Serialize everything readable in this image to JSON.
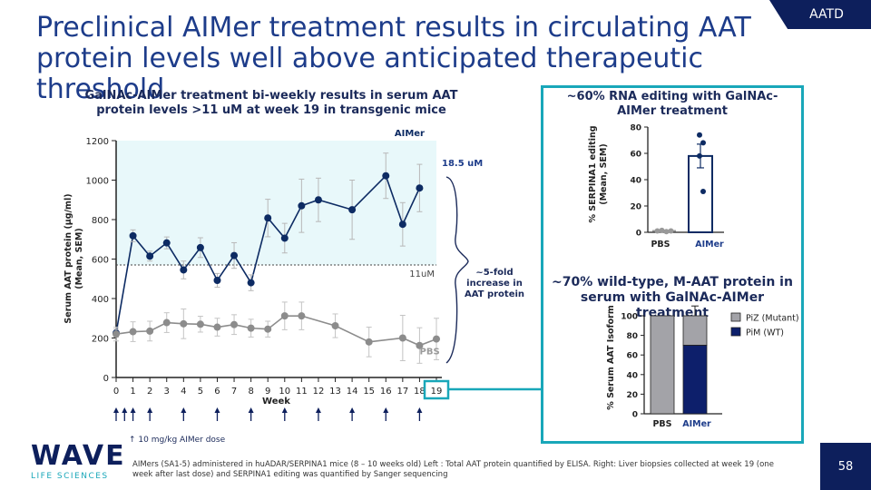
{
  "header": {
    "title": "Preclinical AIMer treatment results in circulating AAT protein levels well above anticipated therapeutic threshold",
    "tag": "AATD",
    "page_number": "58"
  },
  "left_chart_title": "GalNAc-AIMer treatment bi-weekly results in serum AAT protein levels >11 uM at week 19 in transgenic mice",
  "right_top_title": "~60% RNA editing with GalNAc-AIMer treatment",
  "right_bottom_title": "~70% wild-type, M-AAT protein in serum with GalNAc-AIMer treatment",
  "dose_legend": "10 mg/kg AIMer dose",
  "footnote": "AIMers (SA1-5) administered in huADAR/SERPINA1 mice (8 – 10 weeks old) Left : Total AAT protein quantified by ELISA. Right: Liver biopsies collected at week 19 (one week after last dose) and SERPINA1 editing was quantified by Sanger sequencing",
  "logo": {
    "name": "WAVE",
    "sub": "LIFE SCIENCES"
  },
  "colors": {
    "navy": "#0d2b63",
    "grey": "#8c8c8c",
    "teal": "#19a7b9",
    "title_blue": "#1d3c8a"
  },
  "chart_data": [
    {
      "type": "line",
      "xlabel": "Week",
      "ylabel": "Serum AAT protein (µg/ml) (Mean, SEM)",
      "ylim": [
        0,
        1200
      ],
      "yticks": [
        0,
        200,
        400,
        600,
        800,
        1000,
        1200
      ],
      "x": [
        0,
        1,
        2,
        3,
        4,
        5,
        6,
        7,
        8,
        9,
        10,
        11,
        12,
        13,
        14,
        15,
        16,
        17,
        18,
        19
      ],
      "xtick_labels": [
        "0",
        "1",
        "2",
        "3",
        "4",
        "5",
        "6",
        "7",
        "8",
        "9",
        "10",
        "11",
        "12",
        "13",
        "14",
        "15",
        "16",
        "17",
        "18",
        "19"
      ],
      "series": [
        {
          "name": "AIMer",
          "color": "#0d2b63",
          "points": [
            {
              "x": 0,
              "y": 225,
              "err": 20
            },
            {
              "x": 1,
              "y": 718,
              "err": 30
            },
            {
              "x": 2,
              "y": 615,
              "err": 25
            },
            {
              "x": 3,
              "y": 682,
              "err": 30
            },
            {
              "x": 4,
              "y": 545,
              "err": 45
            },
            {
              "x": 5,
              "y": 658,
              "err": 50
            },
            {
              "x": 6,
              "y": 492,
              "err": 35
            },
            {
              "x": 7,
              "y": 618,
              "err": 65
            },
            {
              "x": 8,
              "y": 480,
              "err": 40
            },
            {
              "x": 9,
              "y": 808,
              "err": 95
            },
            {
              "x": 10,
              "y": 706,
              "err": 75
            },
            {
              "x": 11,
              "y": 870,
              "err": 135
            },
            {
              "x": 12,
              "y": 900,
              "err": 110
            },
            {
              "x": 14,
              "y": 850,
              "err": 150
            },
            {
              "x": 16,
              "y": 1022,
              "err": 115
            },
            {
              "x": 17,
              "y": 776,
              "err": 110
            },
            {
              "x": 18,
              "y": 960,
              "err": 120
            }
          ]
        },
        {
          "name": "PBS",
          "color": "#8c8c8c",
          "points": [
            {
              "x": 0,
              "y": 220,
              "err": 35
            },
            {
              "x": 1,
              "y": 232,
              "err": 50
            },
            {
              "x": 2,
              "y": 235,
              "err": 50
            },
            {
              "x": 3,
              "y": 278,
              "err": 50
            },
            {
              "x": 4,
              "y": 272,
              "err": 75
            },
            {
              "x": 5,
              "y": 270,
              "err": 40
            },
            {
              "x": 6,
              "y": 255,
              "err": 45
            },
            {
              "x": 7,
              "y": 268,
              "err": 50
            },
            {
              "x": 8,
              "y": 250,
              "err": 45
            },
            {
              "x": 9,
              "y": 245,
              "err": 40
            },
            {
              "x": 10,
              "y": 312,
              "err": 70
            },
            {
              "x": 11,
              "y": 312,
              "err": 70
            },
            {
              "x": 13,
              "y": 262,
              "err": 60
            },
            {
              "x": 15,
              "y": 180,
              "err": 75
            },
            {
              "x": 17,
              "y": 200,
              "err": 115
            },
            {
              "x": 18,
              "y": 162,
              "err": 90
            },
            {
              "x": 19,
              "y": 195,
              "err": 105
            }
          ]
        }
      ],
      "threshold": {
        "y": 570,
        "label": "11uM"
      },
      "annotations": {
        "top_value": "18.5 uM",
        "increase_label": "~5-fold increase in AAT protein"
      },
      "dose_weeks": [
        0,
        0.5,
        1,
        2,
        4,
        6,
        8,
        10,
        12,
        14,
        16,
        18
      ]
    },
    {
      "type": "bar",
      "ylabel": "% SERPINA1 editing (Mean, SEM)",
      "ylim": [
        0,
        80
      ],
      "yticks": [
        0,
        20,
        40,
        60,
        80
      ],
      "categories": [
        "PBS",
        "AIMer"
      ],
      "values": [
        1,
        58
      ],
      "errors": [
        0.5,
        9
      ],
      "points": [
        [
          1,
          1.5,
          0.5,
          1
        ],
        [
          74,
          68,
          58,
          31
        ]
      ]
    },
    {
      "type": "bar",
      "stacked": true,
      "ylabel": "% Serum AAT Isoform",
      "ylim": [
        0,
        100
      ],
      "yticks": [
        0,
        20,
        40,
        60,
        80,
        100
      ],
      "categories": [
        "PBS",
        "AIMer"
      ],
      "series": [
        {
          "name": "PiM (WT)",
          "values": [
            0,
            70
          ],
          "color": "#0d1f6b"
        },
        {
          "name": "PiZ (Mutant)",
          "values": [
            100,
            30
          ],
          "color": "#a3a3a8"
        }
      ],
      "top_error": [
        0,
        10
      ]
    }
  ]
}
